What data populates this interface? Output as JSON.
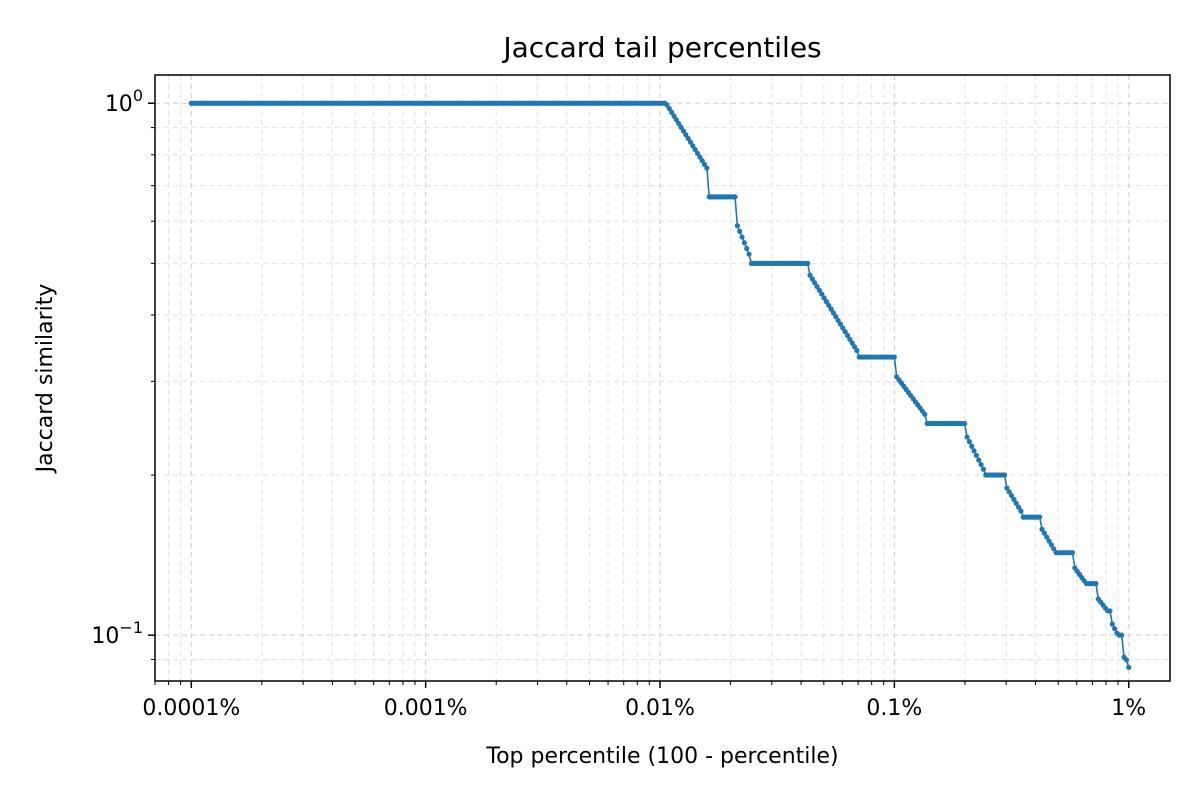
{
  "chart_data": {
    "type": "scatter",
    "title": "Jaccard tail percentiles",
    "xlabel": "Top percentile (100 - percentile)",
    "ylabel": "Jaccard similarity",
    "xscale": "log",
    "yscale": "log",
    "xlim": [
      7e-05,
      1.5
    ],
    "ylim": [
      0.082,
      1.13
    ],
    "grid": true,
    "x_ticks": [
      {
        "value": 0.0001,
        "label": "0.0001%"
      },
      {
        "value": 0.001,
        "label": "0.001%"
      },
      {
        "value": 0.01,
        "label": "0.01%"
      },
      {
        "value": 0.1,
        "label": "0.1%"
      },
      {
        "value": 1,
        "label": "1%"
      }
    ],
    "y_ticks": [
      {
        "value": 1,
        "base": "10",
        "exp": "0"
      },
      {
        "value": 0.1,
        "base": "10",
        "exp": "−1"
      }
    ],
    "series": [
      {
        "color": "#1f77b4",
        "x_range": [
          0.0001,
          1
        ],
        "points_per_decade": 100,
        "steps": [
          {
            "x_from": 0.0001,
            "x_to": 0.0106,
            "y": 1.0
          },
          {
            "x_from": 0.0106,
            "x_to": 0.016,
            "y_from": 1.0,
            "y_to": 0.75
          },
          {
            "x_from": 0.016,
            "x_to": 0.021,
            "y": 0.6667
          },
          {
            "x_from": 0.021,
            "x_to": 0.024,
            "y_from": 0.6,
            "y_to": 0.52
          },
          {
            "x_from": 0.024,
            "x_to": 0.043,
            "y": 0.5
          },
          {
            "x_from": 0.043,
            "x_to": 0.07,
            "y_from": 0.48,
            "y_to": 0.34
          },
          {
            "x_from": 0.07,
            "x_to": 0.1,
            "y": 0.3333
          },
          {
            "x_from": 0.1,
            "x_to": 0.135,
            "y_from": 0.31,
            "y_to": 0.26
          },
          {
            "x_from": 0.135,
            "x_to": 0.2,
            "y": 0.25
          },
          {
            "x_from": 0.2,
            "x_to": 0.24,
            "y_from": 0.24,
            "y_to": 0.205
          },
          {
            "x_from": 0.24,
            "x_to": 0.3,
            "y": 0.2
          },
          {
            "x_from": 0.3,
            "x_to": 0.35,
            "y_from": 0.19,
            "y_to": 0.17
          },
          {
            "x_from": 0.35,
            "x_to": 0.42,
            "y": 0.1667
          },
          {
            "x_from": 0.42,
            "x_to": 0.48,
            "y_from": 0.16,
            "y_to": 0.145
          },
          {
            "x_from": 0.48,
            "x_to": 0.58,
            "y": 0.1429
          },
          {
            "x_from": 0.58,
            "x_to": 0.65,
            "y_from": 0.135,
            "y_to": 0.126
          },
          {
            "x_from": 0.65,
            "x_to": 0.73,
            "y": 0.125
          },
          {
            "x_from": 0.73,
            "x_to": 0.8,
            "y_from": 0.118,
            "y_to": 0.112
          },
          {
            "x_from": 0.8,
            "x_to": 0.85,
            "y": 0.1111
          },
          {
            "x_from": 0.85,
            "x_to": 0.9,
            "y_from": 0.105,
            "y_to": 0.1
          },
          {
            "x_from": 0.9,
            "x_to": 0.94,
            "y": 0.1
          },
          {
            "x_from": 0.94,
            "x_to": 0.97,
            "y": 0.0909
          },
          {
            "x_from": 0.97,
            "x_to": 1.0,
            "y_from": 0.0909,
            "y_to": 0.087
          }
        ]
      }
    ]
  }
}
